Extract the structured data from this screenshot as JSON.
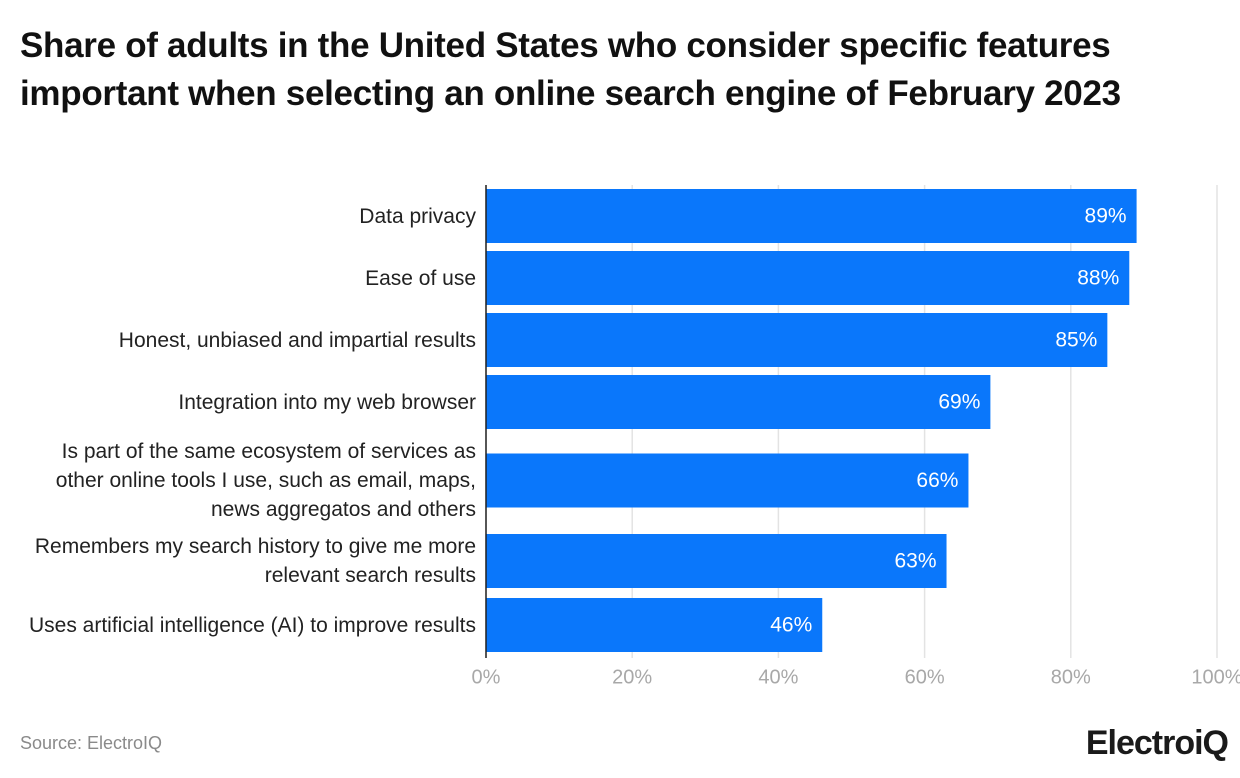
{
  "chart_data": {
    "type": "barh",
    "title": "Share of adults in the United States who consider specific features important when selecting an online search engine of February 2023",
    "categories": [
      "Data privacy",
      "Ease of use",
      "Honest, unbiased and impartial results",
      "Integration into my web browser",
      "Is part of the same ecosystem of services as other online tools I use, such as email, maps, news aggregatos and others",
      "Remembers my search history to give me more relevant search results",
      "Uses artificial intelligence (AI) to improve results"
    ],
    "values": [
      89,
      88,
      85,
      69,
      66,
      63,
      46
    ],
    "value_labels": [
      "89%",
      "88%",
      "85%",
      "69%",
      "66%",
      "63%",
      "46%"
    ],
    "color": "#0a77fb",
    "xlim": [
      0,
      100
    ],
    "xticks": [
      {
        "value": 0,
        "label": "0%"
      },
      {
        "value": 20,
        "label": "20%"
      },
      {
        "value": 40,
        "label": "40%"
      },
      {
        "value": 60,
        "label": "60%"
      },
      {
        "value": 80,
        "label": "80%"
      },
      {
        "value": 100,
        "label": "100%"
      }
    ],
    "grid": true,
    "source": "Source: ElectroIQ",
    "logo": "ElectroiQ"
  }
}
